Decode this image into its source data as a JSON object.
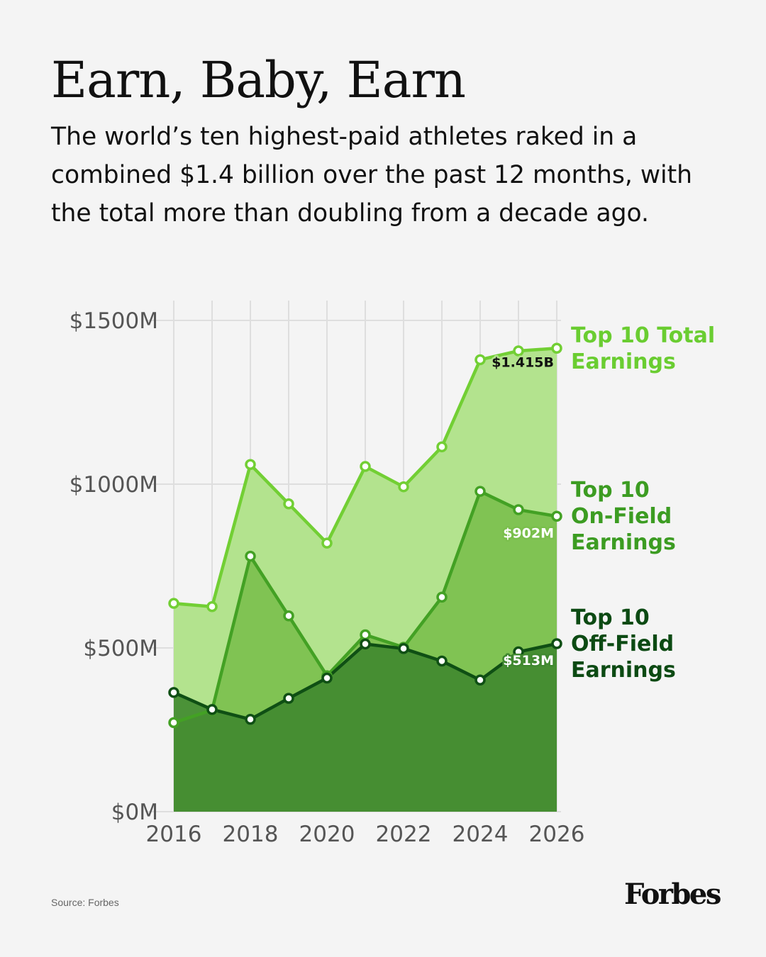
{
  "header": {
    "title": "Earn, Baby, Earn",
    "subtitle": "The world’s ten highest-paid athletes raked in a combined $1.4 billion over the past 12 months, with the total more than doubling from a decade ago."
  },
  "footer": {
    "source": "Source: Forbes",
    "logo": "Forbes"
  },
  "chart_data": {
    "type": "area",
    "x": [
      2016,
      2017,
      2018,
      2019,
      2020,
      2021,
      2022,
      2023,
      2024,
      2025,
      2026
    ],
    "xticks": [
      2016,
      2018,
      2020,
      2022,
      2024,
      2026
    ],
    "xtick_labels": [
      "2016",
      "2018",
      "2020",
      "2022",
      "2024",
      "2026"
    ],
    "yticks": [
      0,
      500,
      1000,
      1500
    ],
    "ytick_labels": [
      "$0M",
      "$500M",
      "$1000M",
      "$1500M"
    ],
    "ylim": [
      0,
      1500
    ],
    "xlim": [
      2016,
      2026
    ],
    "grid": true,
    "legend": "right-inline",
    "series": [
      {
        "name": "Top 10 Total Earnings",
        "label_lines": [
          "Top 10 Total",
          "Earnings"
        ],
        "values": [
          636,
          626,
          1060,
          940,
          820,
          1054,
          992,
          1114,
          1380,
          1407,
          1415
        ],
        "end_label": "$1.415B",
        "line_color": "#72cf34",
        "fill_color": "#b3e38e",
        "label_color": "#6acd31"
      },
      {
        "name": "Top 10 On-Field Earnings",
        "label_lines": [
          "Top 10",
          "On-Field",
          "Earnings"
        ],
        "values": [
          272,
          310,
          780,
          598,
          415,
          540,
          502,
          655,
          978,
          922,
          902
        ],
        "end_label": "$902M",
        "line_color": "#43a124",
        "fill_color": "#7abf4c",
        "label_color": "#3c9c22"
      },
      {
        "name": "Top 10 Off-Field Earnings",
        "label_lines": [
          "Top 10",
          "Off-Field",
          "Earnings"
        ],
        "values": [
          364,
          312,
          282,
          346,
          408,
          512,
          498,
          460,
          402,
          488,
          513
        ],
        "end_label": "$513M",
        "line_color": "#0f4f14",
        "fill_color": "#3f882f",
        "label_color": "#0c4a13"
      }
    ]
  }
}
